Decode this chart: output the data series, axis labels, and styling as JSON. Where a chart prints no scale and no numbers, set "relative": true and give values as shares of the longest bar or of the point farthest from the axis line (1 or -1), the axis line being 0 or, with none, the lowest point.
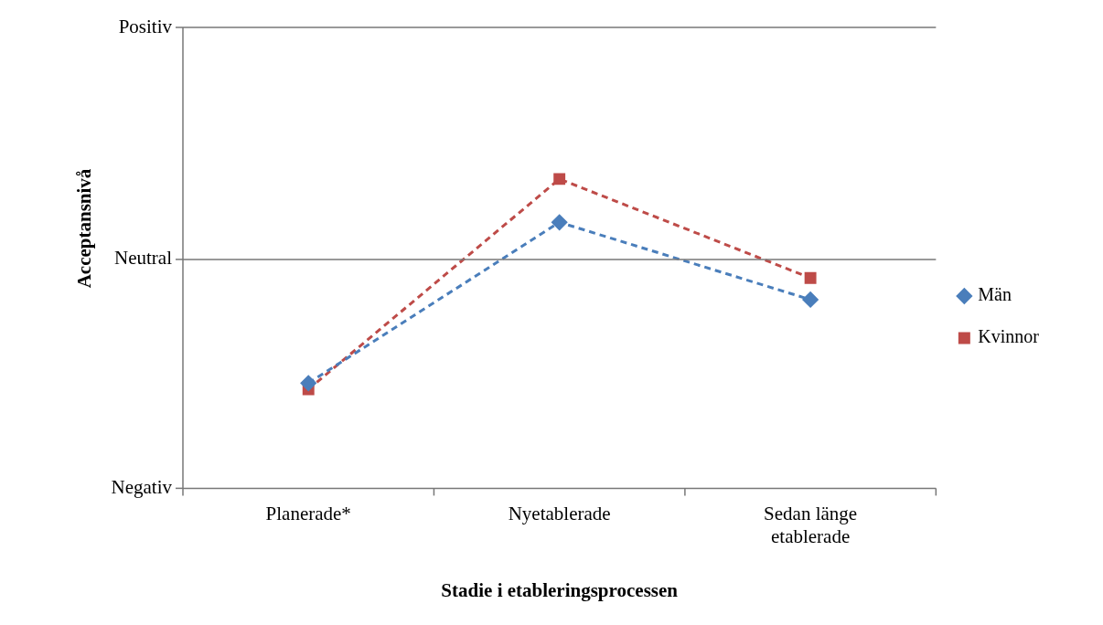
{
  "chart_data": {
    "type": "line",
    "xlabel": "Stadie i etableringsprocessen",
    "ylabel": "Acceptansnivå",
    "categories": [
      "Planerade*",
      "Nyetablerade",
      "Sedan länge etablerade"
    ],
    "series": [
      {
        "name": "Män",
        "color": "#4a7ebb",
        "marker": "diamond",
        "values": [
          0.34,
          0.86,
          0.61
        ]
      },
      {
        "name": "Kvinnor",
        "color": "#be4b48",
        "marker": "square",
        "values": [
          0.32,
          1,
          0.68
        ]
      }
    ],
    "relative": true,
    "ref_lines": [
      {
        "axis": "y",
        "value": 0.74,
        "label": "Neutral",
        "color": "#777777"
      },
      {
        "axis": "y",
        "value": 1.49,
        "label": "Positiv",
        "color": "#777777"
      }
    ],
    "annotations": [
      "Negativ"
    ],
    "legend": "right",
    "line_style": "dashed"
  }
}
